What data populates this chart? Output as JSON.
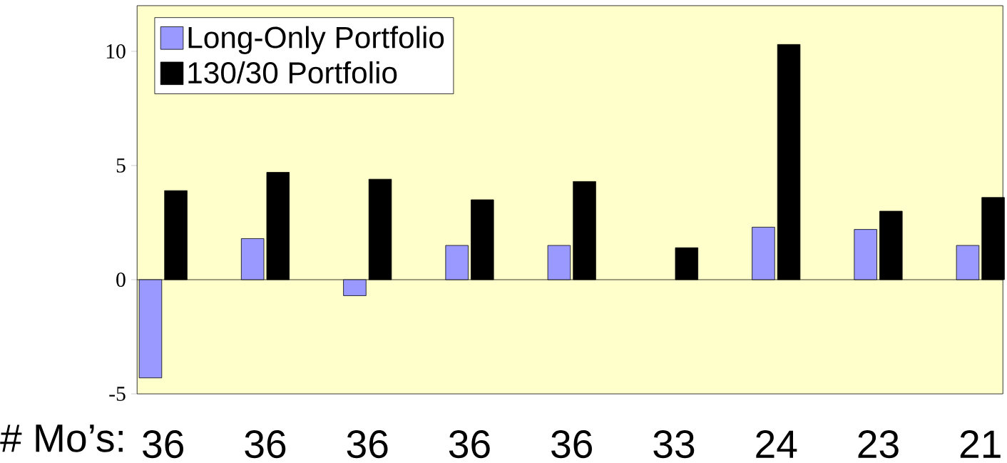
{
  "chart_data": {
    "type": "bar",
    "xlabel": "# Mo’s:",
    "categories": [
      "36",
      "36",
      "36",
      "36",
      "36",
      "33",
      "24",
      "23",
      "21"
    ],
    "series": [
      {
        "name": "Long-Only Portfolio",
        "color": "#9999ff",
        "values": [
          -4.3,
          1.8,
          -0.7,
          1.5,
          1.5,
          null,
          2.3,
          2.2,
          1.5
        ]
      },
      {
        "name": "130/30 Portfolio",
        "color": "#000000",
        "values": [
          3.9,
          4.7,
          4.4,
          3.5,
          4.3,
          1.4,
          10.3,
          3.0,
          3.6
        ]
      }
    ],
    "ylim": [
      -5,
      12
    ],
    "yticks": [
      -5,
      0,
      5,
      10
    ],
    "legend": "top left"
  }
}
